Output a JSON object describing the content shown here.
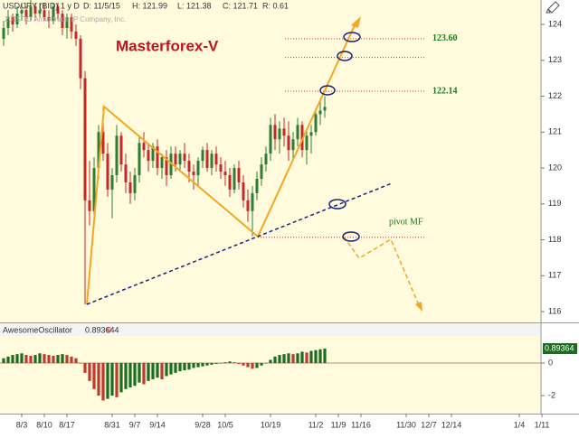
{
  "chart_data": [
    {
      "type": "candlestick",
      "title": "Masterforex-V",
      "header": [
        "USD/JPY (BID) 1 y D",
        "D: 11/5/15",
        "H: 121.99",
        "L: 121.38",
        "C: 121.71",
        "R: 0.61"
      ],
      "watermark": "2015 TD Ameritrade IP Company, Inc.",
      "x": [
        -4,
        -3,
        -2,
        -1,
        0,
        1,
        2,
        3,
        4,
        5,
        6,
        7,
        8,
        9,
        10,
        11,
        12,
        13,
        14,
        15,
        16,
        17,
        18,
        19,
        20,
        21,
        22,
        23,
        24,
        25,
        26,
        27,
        28,
        29,
        30,
        31,
        32,
        33,
        34,
        35,
        36,
        37,
        38,
        39,
        40,
        41,
        42,
        43,
        44,
        45,
        46,
        47,
        48,
        49,
        50,
        51,
        52,
        53,
        54,
        55,
        56,
        57,
        58,
        59,
        60,
        61,
        62,
        63,
        64,
        65,
        66,
        67
      ],
      "open": [
        123.6,
        123.9,
        124.2,
        124.0,
        124.3,
        124.4,
        124.2,
        124.5,
        124.3,
        124.4,
        124.2,
        124.1,
        124.5,
        124.3,
        123.9,
        124.2,
        123.8,
        123.6,
        122.5,
        119.1,
        118.8,
        120.0,
        121.0,
        120.4,
        119.4,
        119.8,
        120.9,
        120.1,
        119.6,
        119.3,
        119.8,
        120.7,
        120.5,
        120.2,
        120.6,
        120.0,
        120.3,
        119.8,
        120.4,
        120.1,
        120.4,
        120.2,
        119.9,
        119.8,
        120.2,
        120.5,
        120.0,
        120.4,
        120.1,
        119.9,
        119.8,
        119.4,
        120.0,
        119.6,
        119.1,
        118.8,
        119.3,
        119.7,
        120.1,
        120.4,
        121.2,
        120.8,
        121.1,
        120.9,
        120.5,
        120.8,
        121.2,
        120.5,
        120.9,
        121.0,
        121.5,
        121.6
      ],
      "high": [
        124.1,
        124.4,
        124.3,
        124.5,
        124.6,
        124.5,
        124.7,
        124.6,
        124.6,
        124.6,
        124.4,
        124.6,
        124.6,
        124.4,
        124.3,
        124.3,
        124.0,
        123.7,
        122.7,
        120.2,
        120.3,
        121.2,
        121.7,
        120.7,
        120.0,
        121.2,
        121.0,
        120.4,
        119.9,
        120.0,
        120.9,
        121.0,
        120.7,
        120.7,
        120.8,
        120.4,
        120.5,
        120.6,
        120.6,
        120.5,
        120.7,
        120.4,
        120.1,
        120.3,
        120.6,
        120.7,
        120.5,
        120.6,
        120.3,
        120.2,
        120.0,
        120.1,
        120.2,
        119.8,
        119.4,
        119.5,
        119.9,
        120.3,
        120.6,
        121.4,
        121.5,
        121.3,
        121.4,
        121.3,
        121.0,
        121.4,
        121.3,
        121.1,
        121.2,
        121.6,
        121.9,
        122.0
      ],
      "low": [
        123.4,
        123.7,
        123.8,
        123.9,
        124.1,
        124.0,
        124.1,
        124.1,
        124.2,
        124.1,
        123.9,
        124.0,
        124.1,
        123.7,
        123.6,
        123.6,
        123.4,
        122.2,
        116.2,
        118.4,
        118.6,
        119.7,
        120.2,
        119.2,
        118.6,
        119.6,
        119.9,
        119.3,
        119.0,
        119.1,
        119.6,
        120.3,
        119.9,
        120.0,
        119.8,
        119.7,
        119.5,
        119.7,
        119.9,
        119.9,
        120.0,
        119.6,
        119.4,
        119.5,
        120.0,
        119.9,
        119.8,
        119.9,
        119.7,
        119.5,
        119.2,
        119.3,
        119.4,
        118.9,
        118.5,
        118.1,
        119.1,
        119.5,
        119.9,
        120.2,
        120.5,
        120.4,
        120.6,
        120.2,
        120.2,
        120.6,
        120.3,
        120.1,
        120.4,
        120.9,
        121.2,
        121.4
      ],
      "close": [
        123.9,
        124.2,
        124.0,
        124.3,
        124.4,
        124.2,
        124.5,
        124.3,
        124.4,
        124.2,
        124.1,
        124.5,
        124.3,
        123.9,
        124.2,
        123.8,
        123.6,
        122.5,
        119.1,
        118.8,
        120.0,
        121.0,
        120.4,
        119.4,
        119.8,
        120.9,
        120.1,
        119.6,
        119.3,
        119.8,
        120.7,
        120.5,
        120.2,
        120.6,
        120.0,
        120.3,
        119.8,
        120.4,
        120.1,
        120.4,
        120.2,
        119.9,
        119.8,
        120.2,
        120.5,
        120.0,
        120.4,
        120.1,
        119.9,
        119.8,
        119.4,
        120.0,
        119.6,
        119.1,
        118.8,
        119.3,
        119.7,
        120.1,
        120.4,
        121.2,
        120.8,
        121.1,
        120.9,
        120.5,
        120.8,
        121.2,
        120.5,
        120.9,
        121.0,
        121.5,
        121.6,
        121.7
      ],
      "up_color": "#2e7d32",
      "down_color": "#c62828",
      "xlim": [
        -4.8,
        115.2
      ],
      "xticks": [
        {
          "value": 0,
          "label": "8/3"
        },
        {
          "value": 5,
          "label": "8/10"
        },
        {
          "value": 10,
          "label": "8/17"
        },
        {
          "value": 20,
          "label": "8/31"
        },
        {
          "value": 25,
          "label": "9/7"
        },
        {
          "value": 30,
          "label": "9/14"
        },
        {
          "value": 40,
          "label": "9/28"
        },
        {
          "value": 45,
          "label": "10/5"
        },
        {
          "value": 55,
          "label": "10/19"
        },
        {
          "value": 65,
          "label": "11/2"
        },
        {
          "value": 70,
          "label": "11/9"
        },
        {
          "value": 75,
          "label": "11/16"
        },
        {
          "value": 85,
          "label": "11/30"
        },
        {
          "value": 90,
          "label": "12/7"
        },
        {
          "value": 95,
          "label": "12/14"
        },
        {
          "value": 110,
          "label": "1/4"
        },
        {
          "value": 115,
          "label": "1/11"
        }
      ],
      "ylim": [
        115.7,
        124.68
      ],
      "yticks": [
        116,
        117,
        118,
        119,
        120,
        121,
        122,
        123,
        124
      ],
      "levels": [
        {
          "value": 123.6,
          "label": "123.60"
        },
        122.14
      ],
      "extra_levels": [
        123.08,
        118.07
      ],
      "pivot_label": "pivot MF"
    },
    {
      "type": "bar",
      "title": "AwesomeOscillator",
      "current": 0.893644,
      "param": 0,
      "last_label": "0.89364",
      "values": [
        0.3,
        0.4,
        0.5,
        0.55,
        0.6,
        0.5,
        0.45,
        0.5,
        0.6,
        0.55,
        0.5,
        0.45,
        0.5,
        0.55,
        0.5,
        0.4,
        0.3,
        0.0,
        -0.6,
        -1.1,
        -1.6,
        -2.0,
        -2.3,
        -2.2,
        -2.0,
        -2.1,
        -1.8,
        -1.6,
        -1.5,
        -1.4,
        -1.2,
        -1.3,
        -1.1,
        -1.0,
        -0.9,
        -1.0,
        -0.8,
        -0.7,
        -0.6,
        -0.5,
        -0.45,
        -0.4,
        -0.3,
        -0.25,
        -0.2,
        -0.15,
        -0.1,
        -0.05,
        0.0,
        0.05,
        0.1,
        0.05,
        -0.05,
        -0.15,
        -0.25,
        -0.35,
        -0.3,
        -0.15,
        0.0,
        0.2,
        0.4,
        0.5,
        0.55,
        0.6,
        0.55,
        0.6,
        0.7,
        0.65,
        0.75,
        0.8,
        0.85,
        0.89
      ],
      "up_color": "#1b6e20",
      "down_color": "#c0392b",
      "ylim": [
        -3.11,
        1.67
      ],
      "yticks": [
        0,
        -2
      ]
    }
  ]
}
